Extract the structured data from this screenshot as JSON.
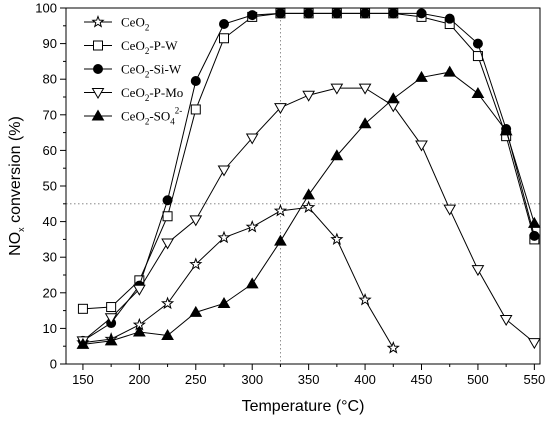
{
  "chart_data": {
    "type": "line",
    "xlabel": "Temperature (°C)",
    "ylabel": {
      "prefix": "NO",
      "sub": "x",
      "suffix": " conversion (%)"
    },
    "xlim": [
      135,
      555
    ],
    "ylim": [
      0,
      100
    ],
    "x_ticks": [
      150,
      200,
      250,
      300,
      350,
      400,
      450,
      500,
      550
    ],
    "y_ticks": [
      0,
      10,
      20,
      30,
      40,
      50,
      60,
      70,
      80,
      90,
      100
    ],
    "x_tick_labels": [
      "150",
      "200",
      "250",
      "300",
      "350",
      "400",
      "450",
      "500",
      "550"
    ],
    "y_tick_labels": [
      "0",
      "10",
      "20",
      "30",
      "40",
      "50",
      "60",
      "70",
      "80",
      "90",
      "100"
    ],
    "grid": false,
    "reference_lines": {
      "x": 325,
      "y": 45
    },
    "legend_position": "top-left",
    "series": [
      {
        "name": "CeO2",
        "legend": {
          "base": "CeO",
          "sub": "2",
          "rest": "",
          "sup": ""
        },
        "marker": "star-open",
        "x": [
          150,
          175,
          200,
          225,
          250,
          275,
          300,
          325,
          350,
          375,
          400,
          425
        ],
        "y": [
          6,
          7,
          11,
          17,
          28,
          35.5,
          38.5,
          43,
          44,
          35,
          18,
          4.5
        ]
      },
      {
        "name": "CeO2-P-W",
        "legend": {
          "base": "CeO",
          "sub": "2",
          "rest": "-P-W",
          "sup": ""
        },
        "marker": "square-open",
        "x": [
          150,
          175,
          200,
          225,
          250,
          275,
          300,
          325,
          350,
          375,
          400,
          425,
          450,
          475,
          500,
          525,
          550
        ],
        "y": [
          15.5,
          16,
          23.5,
          41.5,
          71.5,
          91.5,
          97.5,
          98.5,
          98.5,
          98.5,
          98.5,
          98.5,
          97.5,
          95.5,
          86.5,
          64,
          35
        ]
      },
      {
        "name": "CeO2-Si-W",
        "legend": {
          "base": "CeO",
          "sub": "2",
          "rest": "-Si-W",
          "sup": ""
        },
        "marker": "circle-filled",
        "x": [
          150,
          175,
          200,
          225,
          250,
          275,
          300,
          325,
          350,
          375,
          400,
          425,
          450,
          475,
          500,
          525,
          550
        ],
        "y": [
          6.5,
          11.5,
          22,
          46,
          79.5,
          95.5,
          98,
          98.5,
          98.5,
          98.5,
          98.5,
          98.5,
          98.5,
          97,
          90,
          66,
          36
        ]
      },
      {
        "name": "CeO2-P-Mo",
        "legend": {
          "base": "CeO",
          "sub": "2",
          "rest": "-P-Mo",
          "sup": ""
        },
        "marker": "triangle-down-open",
        "x": [
          150,
          175,
          200,
          225,
          250,
          275,
          300,
          325,
          350,
          375,
          400,
          425,
          450,
          475,
          500,
          525,
          550
        ],
        "y": [
          6.5,
          13,
          21,
          34,
          40.5,
          54.5,
          63.5,
          72,
          75.5,
          77.5,
          77.5,
          72.5,
          61.5,
          43.5,
          26.5,
          12.5,
          6
        ]
      },
      {
        "name": "CeO2-SO42-",
        "legend": {
          "base": "CeO",
          "sub": "2",
          "rest": "-SO",
          "sub2": "4",
          "sup": "2-"
        },
        "marker": "triangle-up-filled",
        "x": [
          150,
          175,
          200,
          225,
          250,
          275,
          300,
          325,
          350,
          375,
          400,
          425,
          450,
          475,
          500,
          525,
          550
        ],
        "y": [
          5.5,
          6.5,
          9,
          8,
          14.5,
          17,
          22.5,
          34.5,
          47.5,
          58.5,
          67.5,
          74.5,
          80.5,
          82,
          76,
          65.5,
          39.5
        ]
      }
    ]
  }
}
